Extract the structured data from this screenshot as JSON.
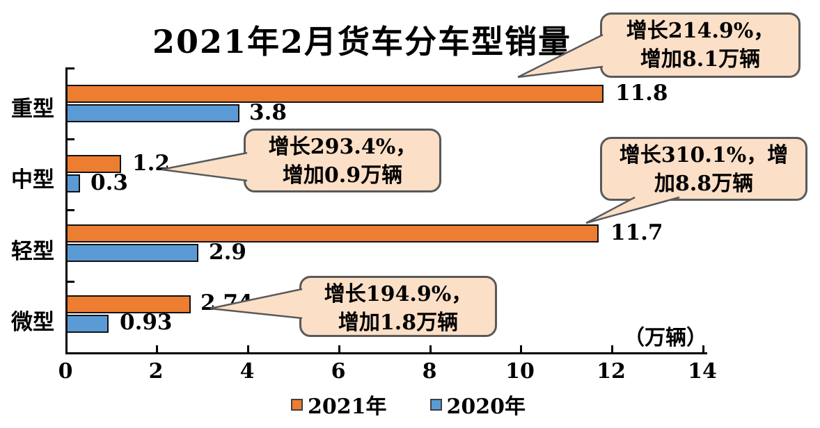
{
  "title": "2021年2月货车分车型销量",
  "chart_data": {
    "type": "bar",
    "orientation": "horizontal",
    "title": "2021年2月货车分车型销量",
    "unit_label": "（万辆）",
    "categories": [
      "重型",
      "中型",
      "轻型",
      "微型"
    ],
    "series": [
      {
        "name": "2021年",
        "color": "#ED7D31",
        "values": [
          11.8,
          1.2,
          11.7,
          2.74
        ],
        "labels": [
          "11.8",
          "1.2",
          "11.7",
          "2.74"
        ]
      },
      {
        "name": "2020年",
        "color": "#5B9BD5",
        "values": [
          3.8,
          0.3,
          2.9,
          0.93
        ],
        "labels": [
          "3.8",
          "0.3",
          "2.9",
          "0.93"
        ]
      }
    ],
    "xlim": [
      0,
      14
    ],
    "xticks": [
      "0",
      "2",
      "4",
      "6",
      "8",
      "10",
      "12",
      "14"
    ],
    "grid": false,
    "legend_position": "bottom",
    "annotations": [
      {
        "target": "重型",
        "line1": "增长214.9%，",
        "line2": "增加8.1万辆"
      },
      {
        "target": "中型",
        "line1": "增长293.4%，",
        "line2": "增加0.9万辆"
      },
      {
        "target": "轻型",
        "line1": "增长310.1%，增",
        "line2": "加8.8万辆"
      },
      {
        "target": "微型",
        "line1": "增长194.9%，",
        "line2": "增加1.8万辆"
      }
    ]
  },
  "legend": [
    {
      "label": "2021年",
      "color": "#ED7D31"
    },
    {
      "label": "2020年",
      "color": "#5B9BD5"
    }
  ],
  "colors": {
    "bar_2021": "#ED7D31",
    "bar_2020": "#5B9BD5",
    "callout_fill": "#FBDFC7",
    "callout_border": "#595959",
    "axis": "#000000",
    "text": "#000000",
    "background": "#FFFFFF"
  }
}
